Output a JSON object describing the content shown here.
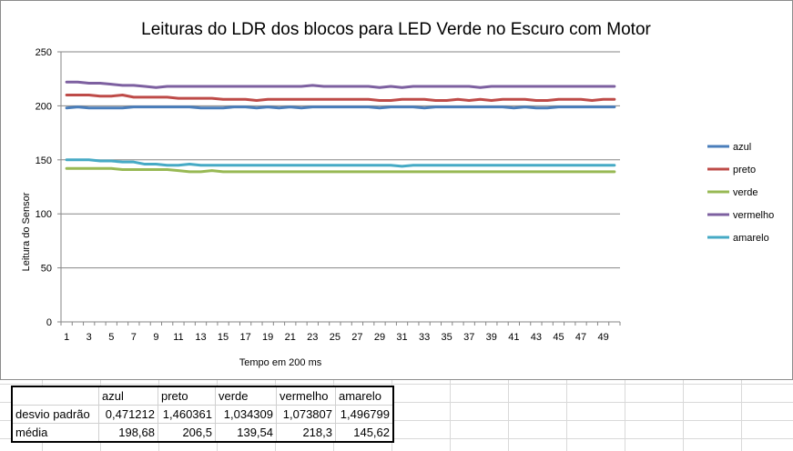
{
  "chart_data": {
    "type": "line",
    "title": "Leituras do LDR dos blocos para LED Verde no Escuro com Motor",
    "xlabel": "Tempo em 200  ms",
    "ylabel": "Leitura do Sensor",
    "ylim": [
      0,
      250
    ],
    "yticks": [
      0,
      50,
      100,
      150,
      200,
      250
    ],
    "xlim": [
      1,
      50
    ],
    "xticks": [
      1,
      3,
      5,
      7,
      9,
      11,
      13,
      15,
      17,
      19,
      21,
      23,
      25,
      27,
      29,
      31,
      33,
      35,
      37,
      39,
      41,
      43,
      45,
      47,
      49
    ],
    "grid": true,
    "legend_position": "right",
    "series": [
      {
        "name": "azul",
        "color": "#4a7ebb",
        "values": [
          198,
          199,
          198,
          198,
          198,
          198,
          199,
          199,
          199,
          199,
          199,
          199,
          198,
          198,
          198,
          199,
          199,
          198,
          199,
          198,
          199,
          198,
          199,
          199,
          199,
          199,
          199,
          199,
          198,
          199,
          199,
          199,
          198,
          199,
          199,
          199,
          199,
          199,
          199,
          199,
          198,
          199,
          198,
          198,
          199,
          199,
          199,
          199,
          199,
          199
        ]
      },
      {
        "name": "preto",
        "color": "#be4b48",
        "values": [
          210,
          210,
          210,
          209,
          209,
          210,
          208,
          208,
          208,
          208,
          207,
          207,
          207,
          207,
          206,
          206,
          206,
          205,
          206,
          206,
          206,
          206,
          206,
          206,
          206,
          206,
          206,
          206,
          205,
          205,
          206,
          206,
          206,
          205,
          205,
          206,
          205,
          206,
          205,
          206,
          206,
          206,
          205,
          205,
          206,
          206,
          206,
          205,
          206,
          206
        ]
      },
      {
        "name": "verde",
        "color": "#98b954",
        "values": [
          142,
          142,
          142,
          142,
          142,
          141,
          141,
          141,
          141,
          141,
          140,
          139,
          139,
          140,
          139,
          139,
          139,
          139,
          139,
          139,
          139,
          139,
          139,
          139,
          139,
          139,
          139,
          139,
          139,
          139,
          139,
          139,
          139,
          139,
          139,
          139,
          139,
          139,
          139,
          139,
          139,
          139,
          139,
          139,
          139,
          139,
          139,
          139,
          139,
          139
        ]
      },
      {
        "name": "vermelho",
        "color": "#7d60a0",
        "values": [
          222,
          222,
          221,
          221,
          220,
          219,
          219,
          218,
          217,
          218,
          218,
          218,
          218,
          218,
          218,
          218,
          218,
          218,
          218,
          218,
          218,
          218,
          219,
          218,
          218,
          218,
          218,
          218,
          217,
          218,
          217,
          218,
          218,
          218,
          218,
          218,
          218,
          217,
          218,
          218,
          218,
          218,
          218,
          218,
          218,
          218,
          218,
          218,
          218,
          218
        ]
      },
      {
        "name": "amarelo",
        "color": "#46aac5",
        "values": [
          150,
          150,
          150,
          149,
          149,
          148,
          148,
          146,
          146,
          145,
          145,
          146,
          145,
          145,
          145,
          145,
          145,
          145,
          145,
          145,
          145,
          145,
          145,
          145,
          145,
          145,
          145,
          145,
          145,
          145,
          144,
          145,
          145,
          145,
          145,
          145,
          145,
          145,
          145,
          145,
          145,
          145,
          145,
          145,
          145,
          145,
          145,
          145,
          145,
          145
        ]
      }
    ]
  },
  "stats_table": {
    "headers": [
      "",
      "azul",
      "preto",
      "verde",
      "vermelho",
      "amarelo"
    ],
    "rows": [
      {
        "label": "desvio padrão",
        "values": [
          "0,471212",
          "1,460361",
          "1,034309",
          "1,073807",
          "1,496799"
        ]
      },
      {
        "label": "média",
        "values": [
          "198,68",
          "206,5",
          "139,54",
          "218,3",
          "145,62"
        ]
      }
    ]
  }
}
